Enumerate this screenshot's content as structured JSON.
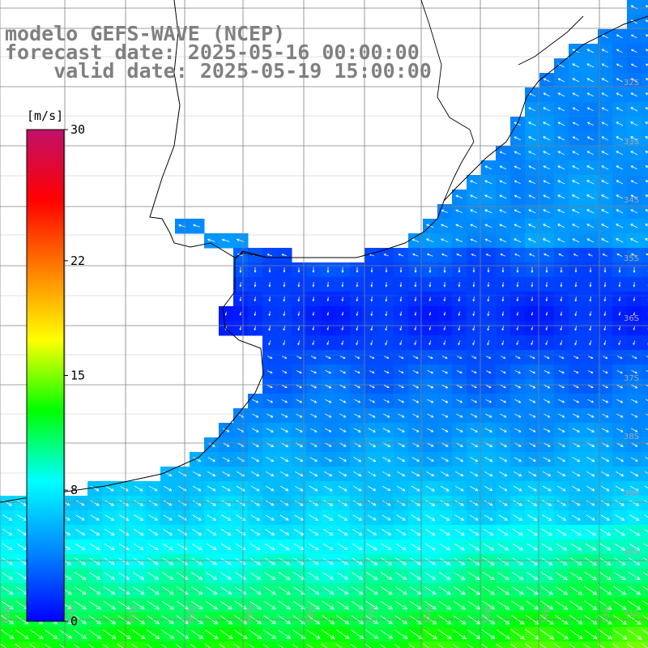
{
  "title": {
    "line1": "modelo GEFS-WAVE (NCEP)",
    "line2": "forecast date: 2025-05-16 00:00:00",
    "line3": "    valid date: 2025-05-19 15:00:00"
  },
  "colorbar": {
    "unit": "[m/s]",
    "min": 0,
    "max": 30,
    "tick_labels": [
      "30",
      "22",
      "15",
      "8",
      "0"
    ],
    "tick_values": [
      30,
      22,
      15,
      8,
      0
    ],
    "colors": [
      "#0000ff",
      "#0088ff",
      "#00ffff",
      "#00ff00",
      "#ffff00",
      "#ff8000",
      "#ff0000",
      "#c0106a"
    ]
  },
  "map": {
    "region": "Rio de la Plata / Uruguay / Buenos Aires coast",
    "lat_labels": [
      "32S",
      "33S",
      "34S",
      "35S",
      "36S",
      "37S",
      "38S",
      "39S",
      "40S",
      "41S"
    ],
    "lon_labels": [
      "63W",
      "62W",
      "61W",
      "60W",
      "59W",
      "58W",
      "57W",
      "56W",
      "55W",
      "54W",
      "53W"
    ],
    "variable": "wind speed at 10m",
    "land_color": "#ffffff",
    "arrow_color": "#ffffff"
  }
}
